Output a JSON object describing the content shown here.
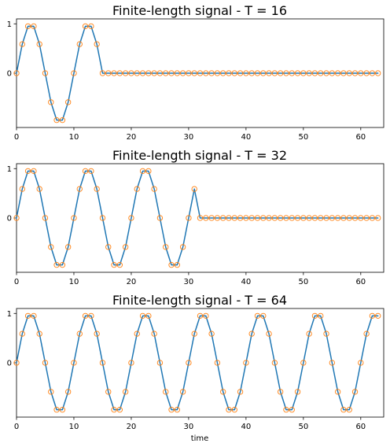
{
  "colors": {
    "line": "#1f77b4",
    "markers": "#ff7f0e",
    "axes": "#000000",
    "background": "#ffffff"
  },
  "chart_data": [
    {
      "type": "line",
      "title": "Finite-length signal - T = 16",
      "xlabel": "",
      "ylabel": "",
      "period": 10,
      "signal_length": 16,
      "x": [
        0,
        1,
        2,
        3,
        4,
        5,
        6,
        7,
        8,
        9,
        10,
        11,
        12,
        13,
        14,
        15,
        16,
        17,
        18,
        19,
        20,
        21,
        22,
        23,
        24,
        25,
        26,
        27,
        28,
        29,
        30,
        31,
        32,
        33,
        34,
        35,
        36,
        37,
        38,
        39,
        40,
        41,
        42,
        43,
        44,
        45,
        46,
        47,
        48,
        49,
        50,
        51,
        52,
        53,
        54,
        55,
        56,
        57,
        58,
        59,
        60,
        61,
        62,
        63
      ],
      "series": [
        {
          "style": "line",
          "values": [
            0,
            0.588,
            0.951,
            0.951,
            0.588,
            0,
            -0.588,
            -0.951,
            -0.951,
            -0.588,
            0,
            0.588,
            0.951,
            0.951,
            0.588,
            0,
            0,
            0,
            0,
            0,
            0,
            0,
            0,
            0,
            0,
            0,
            0,
            0,
            0,
            0,
            0,
            0,
            0,
            0,
            0,
            0,
            0,
            0,
            0,
            0,
            0,
            0,
            0,
            0,
            0,
            0,
            0,
            0,
            0,
            0,
            0,
            0,
            0,
            0,
            0,
            0,
            0,
            0,
            0,
            0,
            0,
            0,
            0,
            0
          ]
        },
        {
          "style": "open-circle-markers",
          "values": [
            0,
            0.588,
            0.951,
            0.951,
            0.588,
            0,
            -0.588,
            -0.951,
            -0.951,
            -0.588,
            0,
            0.588,
            0.951,
            0.951,
            0.588,
            0,
            0,
            0,
            0,
            0,
            0,
            0,
            0,
            0,
            0,
            0,
            0,
            0,
            0,
            0,
            0,
            0,
            0,
            0,
            0,
            0,
            0,
            0,
            0,
            0,
            0,
            0,
            0,
            0,
            0,
            0,
            0,
            0,
            0,
            0,
            0,
            0,
            0,
            0,
            0,
            0,
            0,
            0,
            0,
            0,
            0,
            0,
            0,
            0
          ]
        }
      ],
      "xlim": [
        0,
        64
      ],
      "ylim": [
        -1.1,
        1.1
      ],
      "xticks": [
        "0",
        "10",
        "20",
        "30",
        "40",
        "50",
        "60"
      ],
      "xtick_values": [
        0,
        10,
        20,
        30,
        40,
        50,
        60
      ],
      "yticks": [
        "0",
        "1"
      ],
      "ytick_values": [
        0,
        1
      ],
      "grid": false,
      "legend": false
    },
    {
      "type": "line",
      "title": "Finite-length signal - T = 32",
      "xlabel": "",
      "ylabel": "",
      "period": 10,
      "signal_length": 32,
      "x": [
        0,
        1,
        2,
        3,
        4,
        5,
        6,
        7,
        8,
        9,
        10,
        11,
        12,
        13,
        14,
        15,
        16,
        17,
        18,
        19,
        20,
        21,
        22,
        23,
        24,
        25,
        26,
        27,
        28,
        29,
        30,
        31,
        32,
        33,
        34,
        35,
        36,
        37,
        38,
        39,
        40,
        41,
        42,
        43,
        44,
        45,
        46,
        47,
        48,
        49,
        50,
        51,
        52,
        53,
        54,
        55,
        56,
        57,
        58,
        59,
        60,
        61,
        62,
        63
      ],
      "series": [
        {
          "style": "line",
          "values": [
            0,
            0.588,
            0.951,
            0.951,
            0.588,
            0,
            -0.588,
            -0.951,
            -0.951,
            -0.588,
            0,
            0.588,
            0.951,
            0.951,
            0.588,
            0,
            -0.588,
            -0.951,
            -0.951,
            -0.588,
            0,
            0.588,
            0.951,
            0.951,
            0.588,
            0,
            -0.588,
            -0.951,
            -0.951,
            -0.588,
            0,
            0.588,
            0,
            0,
            0,
            0,
            0,
            0,
            0,
            0,
            0,
            0,
            0,
            0,
            0,
            0,
            0,
            0,
            0,
            0,
            0,
            0,
            0,
            0,
            0,
            0,
            0,
            0,
            0,
            0,
            0,
            0,
            0,
            0
          ]
        },
        {
          "style": "open-circle-markers",
          "values": [
            0,
            0.588,
            0.951,
            0.951,
            0.588,
            0,
            -0.588,
            -0.951,
            -0.951,
            -0.588,
            0,
            0.588,
            0.951,
            0.951,
            0.588,
            0,
            -0.588,
            -0.951,
            -0.951,
            -0.588,
            0,
            0.588,
            0.951,
            0.951,
            0.588,
            0,
            -0.588,
            -0.951,
            -0.951,
            -0.588,
            0,
            0.588,
            0,
            0,
            0,
            0,
            0,
            0,
            0,
            0,
            0,
            0,
            0,
            0,
            0,
            0,
            0,
            0,
            0,
            0,
            0,
            0,
            0,
            0,
            0,
            0,
            0,
            0,
            0,
            0,
            0,
            0,
            0,
            0
          ]
        }
      ],
      "xlim": [
        0,
        64
      ],
      "ylim": [
        -1.1,
        1.1
      ],
      "xticks": [
        "0",
        "10",
        "20",
        "30",
        "40",
        "50",
        "60"
      ],
      "xtick_values": [
        0,
        10,
        20,
        30,
        40,
        50,
        60
      ],
      "yticks": [
        "0",
        "1"
      ],
      "ytick_values": [
        0,
        1
      ],
      "grid": false,
      "legend": false
    },
    {
      "type": "line",
      "title": "Finite-length signal - T = 64",
      "xlabel": "time",
      "ylabel": "",
      "period": 10,
      "signal_length": 64,
      "x": [
        0,
        1,
        2,
        3,
        4,
        5,
        6,
        7,
        8,
        9,
        10,
        11,
        12,
        13,
        14,
        15,
        16,
        17,
        18,
        19,
        20,
        21,
        22,
        23,
        24,
        25,
        26,
        27,
        28,
        29,
        30,
        31,
        32,
        33,
        34,
        35,
        36,
        37,
        38,
        39,
        40,
        41,
        42,
        43,
        44,
        45,
        46,
        47,
        48,
        49,
        50,
        51,
        52,
        53,
        54,
        55,
        56,
        57,
        58,
        59,
        60,
        61,
        62,
        63
      ],
      "series": [
        {
          "style": "line",
          "values": [
            0,
            0.588,
            0.951,
            0.951,
            0.588,
            0,
            -0.588,
            -0.951,
            -0.951,
            -0.588,
            0,
            0.588,
            0.951,
            0.951,
            0.588,
            0,
            -0.588,
            -0.951,
            -0.951,
            -0.588,
            0,
            0.588,
            0.951,
            0.951,
            0.588,
            0,
            -0.588,
            -0.951,
            -0.951,
            -0.588,
            0,
            0.588,
            0.951,
            0.951,
            0.588,
            0,
            -0.588,
            -0.951,
            -0.951,
            -0.588,
            0,
            0.588,
            0.951,
            0.951,
            0.588,
            0,
            -0.588,
            -0.951,
            -0.951,
            -0.588,
            0,
            0.588,
            0.951,
            0.951,
            0.588,
            0,
            -0.588,
            -0.951,
            -0.951,
            -0.588,
            0,
            0.588,
            0.951,
            0.951
          ]
        },
        {
          "style": "open-circle-markers",
          "values": [
            0,
            0.588,
            0.951,
            0.951,
            0.588,
            0,
            -0.588,
            -0.951,
            -0.951,
            -0.588,
            0,
            0.588,
            0.951,
            0.951,
            0.588,
            0,
            -0.588,
            -0.951,
            -0.951,
            -0.588,
            0,
            0.588,
            0.951,
            0.951,
            0.588,
            0,
            -0.588,
            -0.951,
            -0.951,
            -0.588,
            0,
            0.588,
            0.951,
            0.951,
            0.588,
            0,
            -0.588,
            -0.951,
            -0.951,
            -0.588,
            0,
            0.588,
            0.951,
            0.951,
            0.588,
            0,
            -0.588,
            -0.951,
            -0.951,
            -0.588,
            0,
            0.588,
            0.951,
            0.951,
            0.588,
            0,
            -0.588,
            -0.951,
            -0.951,
            -0.588,
            0,
            0.588,
            0.951,
            0.951
          ]
        }
      ],
      "xlim": [
        0,
        64
      ],
      "ylim": [
        -1.1,
        1.1
      ],
      "xticks": [
        "0",
        "10",
        "20",
        "30",
        "40",
        "50",
        "60"
      ],
      "xtick_values": [
        0,
        10,
        20,
        30,
        40,
        50,
        60
      ],
      "yticks": [
        "0",
        "1"
      ],
      "ytick_values": [
        0,
        1
      ],
      "grid": false,
      "legend": false
    }
  ]
}
